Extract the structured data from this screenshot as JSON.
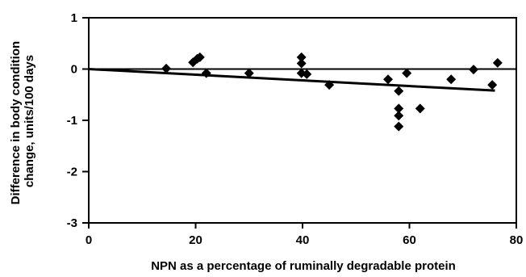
{
  "chart_data": {
    "type": "scatter",
    "title": "",
    "xlabel": "NPN as a percentage of ruminally degradable protein",
    "ylabel_lines": [
      "Difference in body condition",
      "change, units/100 days"
    ],
    "xlim": [
      0,
      80
    ],
    "ylim": [
      -3,
      1
    ],
    "xticks": [
      0,
      20,
      40,
      60,
      80
    ],
    "yticks": [
      1,
      0,
      -1,
      -2,
      -3
    ],
    "xtick_labels": [
      "0",
      "20",
      "40",
      "60",
      "80"
    ],
    "ytick_labels": [
      "1",
      "0",
      "-1",
      "-2",
      "-3"
    ],
    "zero_line": true,
    "grid": false,
    "legend": "none",
    "points": [
      {
        "x": 14.5,
        "y": 0.01
      },
      {
        "x": 19.5,
        "y": 0.13
      },
      {
        "x": 20.3,
        "y": 0.2
      },
      {
        "x": 20.8,
        "y": 0.23
      },
      {
        "x": 22.0,
        "y": -0.08
      },
      {
        "x": 30.0,
        "y": -0.08
      },
      {
        "x": 39.8,
        "y": 0.23
      },
      {
        "x": 39.8,
        "y": 0.11
      },
      {
        "x": 39.8,
        "y": -0.08
      },
      {
        "x": 40.8,
        "y": -0.1
      },
      {
        "x": 45.0,
        "y": -0.31
      },
      {
        "x": 56.0,
        "y": -0.2
      },
      {
        "x": 58.0,
        "y": -0.43
      },
      {
        "x": 58.0,
        "y": -0.77
      },
      {
        "x": 58.0,
        "y": -0.91
      },
      {
        "x": 58.0,
        "y": -1.12
      },
      {
        "x": 59.5,
        "y": -0.08
      },
      {
        "x": 62.0,
        "y": -0.77
      },
      {
        "x": 67.8,
        "y": -0.2
      },
      {
        "x": 72.0,
        "y": -0.01
      },
      {
        "x": 75.5,
        "y": -0.31
      },
      {
        "x": 76.5,
        "y": 0.12
      }
    ],
    "trend_line": {
      "x": [
        0,
        76
      ],
      "y": [
        0.0,
        -0.42
      ]
    },
    "marker_color": "#000000",
    "line_color": "#000000"
  }
}
